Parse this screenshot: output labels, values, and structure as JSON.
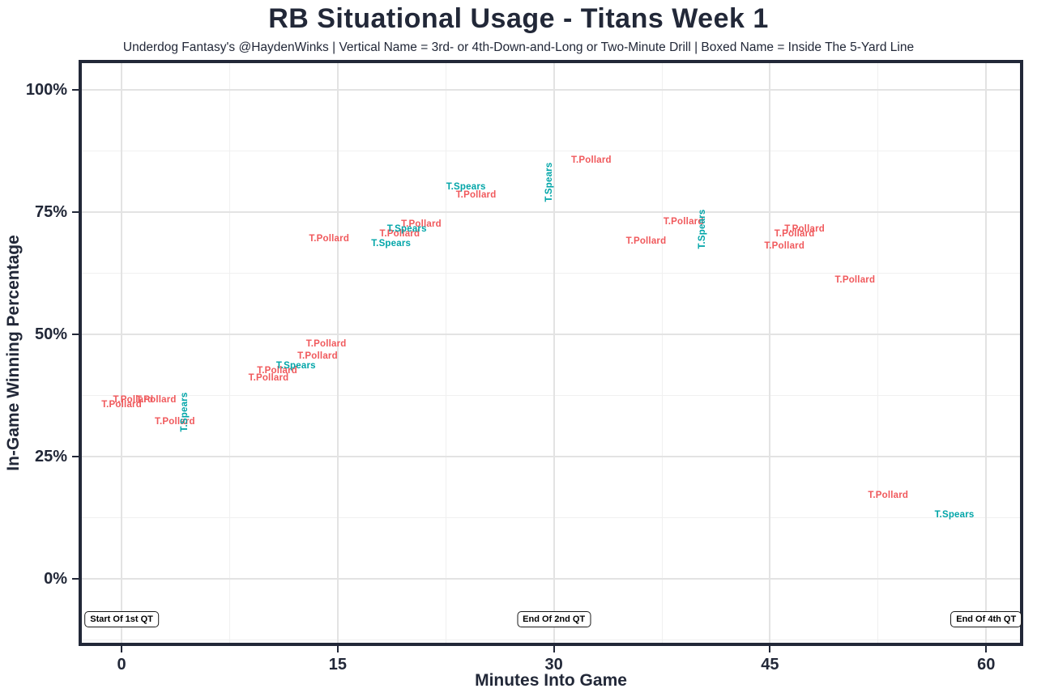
{
  "title": "RB Situational Usage - Titans Week 1",
  "subtitle": "Underdog Fantasy's @HaydenWinks | Vertical Name = 3rd- or 4th-Down-and-Long or Two-Minute Drill | Boxed Name = Inside The 5-Yard Line",
  "colors": {
    "pollard_red": "#F0595C",
    "spears_teal": "#00A5A8",
    "axis_dark": "#222838",
    "grid_major": "#E3E3E3",
    "grid_minor": "#F0F0F0",
    "panel_bg": "#FFFFFF",
    "annotation_text": "#000000"
  },
  "chart_data": {
    "type": "scatter",
    "title": "RB Situational Usage - Titans Week 1",
    "subtitle": "Underdog Fantasy's @HaydenWinks | Vertical Name = 3rd- or 4th-Down-and-Long or Two-Minute Drill | Boxed Name = Inside The 5-Yard Line",
    "xlabel": "Minutes Into Game",
    "ylabel": "In-Game Winning Percentage",
    "xlim": [
      -2.76,
      62.35
    ],
    "ylim": [
      -13.1,
      105.4
    ],
    "grid": true,
    "legend_position": "none",
    "x_ticks": [
      {
        "value": 0,
        "label": "0"
      },
      {
        "value": 15,
        "label": "15"
      },
      {
        "value": 30,
        "label": "30"
      },
      {
        "value": 45,
        "label": "45"
      },
      {
        "value": 60,
        "label": "60"
      }
    ],
    "y_ticks": [
      {
        "value": 0,
        "label": "0%"
      },
      {
        "value": 25,
        "label": "25%"
      },
      {
        "value": 50,
        "label": "50%"
      },
      {
        "value": 75,
        "label": "75%"
      },
      {
        "value": 100,
        "label": "100%"
      }
    ],
    "x_minor_gridlines": [
      7.5,
      22.5,
      37.5,
      52.5
    ],
    "y_minor_gridlines": [
      -12.5,
      12.5,
      37.5,
      62.5,
      87.5
    ],
    "series": [
      {
        "name": "T.Pollard",
        "color_key": "pollard_red",
        "points": [
          {
            "x": 0.0,
            "y": 35.5,
            "orientation": "horizontal"
          },
          {
            "x": 0.8,
            "y": 36.5,
            "orientation": "horizontal"
          },
          {
            "x": 2.4,
            "y": 36.5,
            "orientation": "horizontal"
          },
          {
            "x": 3.7,
            "y": 32.0,
            "orientation": "horizontal"
          },
          {
            "x": 10.2,
            "y": 41.0,
            "orientation": "horizontal"
          },
          {
            "x": 10.8,
            "y": 42.5,
            "orientation": "horizontal"
          },
          {
            "x": 13.6,
            "y": 45.5,
            "orientation": "horizontal"
          },
          {
            "x": 14.2,
            "y": 48.0,
            "orientation": "horizontal"
          },
          {
            "x": 14.4,
            "y": 69.5,
            "orientation": "horizontal"
          },
          {
            "x": 19.3,
            "y": 70.4,
            "orientation": "horizontal"
          },
          {
            "x": 20.8,
            "y": 72.4,
            "orientation": "horizontal"
          },
          {
            "x": 24.6,
            "y": 78.5,
            "orientation": "horizontal"
          },
          {
            "x": 32.6,
            "y": 85.5,
            "orientation": "horizontal"
          },
          {
            "x": 36.4,
            "y": 69.0,
            "orientation": "horizontal"
          },
          {
            "x": 39.0,
            "y": 73.0,
            "orientation": "horizontal"
          },
          {
            "x": 46.0,
            "y": 68.0,
            "orientation": "horizontal"
          },
          {
            "x": 46.7,
            "y": 70.5,
            "orientation": "horizontal"
          },
          {
            "x": 47.4,
            "y": 71.5,
            "orientation": "horizontal"
          },
          {
            "x": 50.9,
            "y": 61.0,
            "orientation": "horizontal"
          },
          {
            "x": 53.2,
            "y": 17.0,
            "orientation": "horizontal"
          }
        ]
      },
      {
        "name": "T.Spears",
        "color_key": "spears_teal",
        "points": [
          {
            "x": 4.4,
            "y": 34.0,
            "orientation": "vertical"
          },
          {
            "x": 12.1,
            "y": 43.5,
            "orientation": "horizontal"
          },
          {
            "x": 18.7,
            "y": 68.5,
            "orientation": "horizontal"
          },
          {
            "x": 19.8,
            "y": 71.4,
            "orientation": "horizontal"
          },
          {
            "x": 23.9,
            "y": 80.0,
            "orientation": "horizontal"
          },
          {
            "x": 29.7,
            "y": 81.0,
            "orientation": "vertical"
          },
          {
            "x": 40.3,
            "y": 71.5,
            "orientation": "vertical"
          },
          {
            "x": 57.8,
            "y": 13.0,
            "orientation": "horizontal"
          }
        ]
      }
    ],
    "annotations": [
      {
        "label": "Start Of 1st QT",
        "x": 0,
        "y": -8.3
      },
      {
        "label": "End Of 2nd QT",
        "x": 30,
        "y": -8.3
      },
      {
        "label": "End Of 4th QT",
        "x": 60,
        "y": -8.3
      }
    ]
  }
}
